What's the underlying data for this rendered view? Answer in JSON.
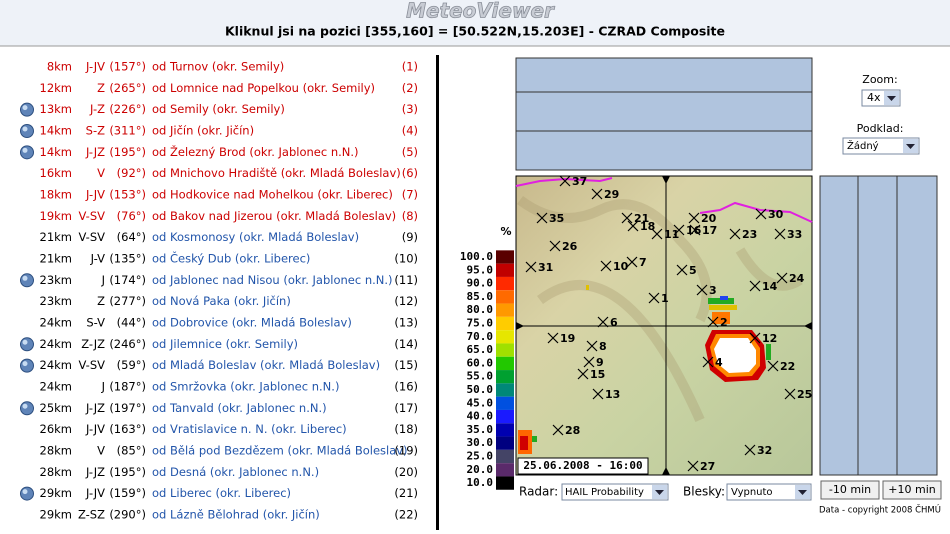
{
  "header": {
    "logo": "MeteoViewer",
    "subtitle": "Kliknul jsi na pozici [355,160] = [50.522N,15.203E] - CZRAD Composite"
  },
  "list": {
    "rows": [
      {
        "distance": "8km",
        "direction": "J-JV",
        "angle": "(157°)",
        "place": "od Turnov (okr. Semily)",
        "number": "(1)",
        "icon": false,
        "color": "#cc0000"
      },
      {
        "distance": "12km",
        "direction": "Z",
        "angle": "(265°)",
        "place": "od Lomnice nad Popelkou (okr. Semily)",
        "number": "(2)",
        "icon": false,
        "color": "#cc0000"
      },
      {
        "distance": "13km",
        "direction": "J-Z",
        "angle": "(226°)",
        "place": "od Semily (okr. Semily)",
        "number": "(3)",
        "icon": true,
        "color": "#cc0000"
      },
      {
        "distance": "14km",
        "direction": "S-Z",
        "angle": "(311°)",
        "place": "od Jičín (okr. Jičín)",
        "number": "(4)",
        "icon": true,
        "color": "#cc0000"
      },
      {
        "distance": "14km",
        "direction": "J-JZ",
        "angle": "(195°)",
        "place": "od Železný Brod (okr. Jablonec n.N.)",
        "number": "(5)",
        "icon": true,
        "color": "#cc0000"
      },
      {
        "distance": "16km",
        "direction": "V",
        "angle": "(92°)",
        "place": "od Mnichovo Hradiště (okr. Mladá Boleslav)",
        "number": "(6)",
        "icon": false,
        "color": "#cc0000"
      },
      {
        "distance": "18km",
        "direction": "J-JV",
        "angle": "(153°)",
        "place": "od Hodkovice nad Mohelkou (okr. Liberec)",
        "number": "(7)",
        "icon": false,
        "color": "#cc0000"
      },
      {
        "distance": "19km",
        "direction": "V-SV",
        "angle": "(76°)",
        "place": "od Bakov nad Jizerou (okr. Mladá Boleslav)",
        "number": "(8)",
        "icon": false,
        "color": "#cc0000"
      },
      {
        "distance": "21km",
        "direction": "V-SV",
        "angle": "(64°)",
        "place": "od Kosmonosy (okr. Mladá Boleslav)",
        "number": "(9)",
        "icon": false,
        "color": "#000000"
      },
      {
        "distance": "21km",
        "direction": "J-V",
        "angle": "(135°)",
        "place": "od Český Dub (okr. Liberec)",
        "number": "(10)",
        "icon": false,
        "color": "#000000"
      },
      {
        "distance": "23km",
        "direction": "J",
        "angle": "(174°)",
        "place": "od Jablonec nad Nisou (okr. Jablonec n.N.)",
        "number": "(11)",
        "icon": true,
        "color": "#000000"
      },
      {
        "distance": "23km",
        "direction": "Z",
        "angle": "(277°)",
        "place": "od Nová Paka (okr. Jičín)",
        "number": "(12)",
        "icon": false,
        "color": "#000000"
      },
      {
        "distance": "24km",
        "direction": "S-V",
        "angle": "(44°)",
        "place": "od Dobrovice (okr. Mladá Boleslav)",
        "number": "(13)",
        "icon": false,
        "color": "#000000"
      },
      {
        "distance": "24km",
        "direction": "Z-JZ",
        "angle": "(246°)",
        "place": "od Jilemnice (okr. Semily)",
        "number": "(14)",
        "icon": true,
        "color": "#000000"
      },
      {
        "distance": "24km",
        "direction": "V-SV",
        "angle": "(59°)",
        "place": "od Mladá Boleslav (okr. Mladá Boleslav)",
        "number": "(15)",
        "icon": true,
        "color": "#000000"
      },
      {
        "distance": "24km",
        "direction": "J",
        "angle": "(187°)",
        "place": "od Smržovka (okr. Jablonec n.N.)",
        "number": "(16)",
        "icon": false,
        "color": "#000000"
      },
      {
        "distance": "25km",
        "direction": "J-JZ",
        "angle": "(197°)",
        "place": "od Tanvald (okr. Jablonec n.N.)",
        "number": "(17)",
        "icon": true,
        "color": "#000000"
      },
      {
        "distance": "26km",
        "direction": "J-JV",
        "angle": "(163°)",
        "place": "od Vratislavice n. N. (okr. Liberec)",
        "number": "(18)",
        "icon": false,
        "color": "#000000"
      },
      {
        "distance": "28km",
        "direction": "V",
        "angle": "(85°)",
        "place": "od Bělá pod Bezdězem (okr. Mladá Boleslav)",
        "number": "(19)",
        "icon": false,
        "color": "#000000"
      },
      {
        "distance": "28km",
        "direction": "J-JZ",
        "angle": "(195°)",
        "place": "od Desná (okr. Jablonec n.N.)",
        "number": "(20)",
        "icon": false,
        "color": "#000000"
      },
      {
        "distance": "29km",
        "direction": "J-JV",
        "angle": "(159°)",
        "place": "od Liberec (okr. Liberec)",
        "number": "(21)",
        "icon": true,
        "color": "#000000"
      },
      {
        "distance": "29km",
        "direction": "Z-SZ",
        "angle": "(290°)",
        "place": "od Lázně Bělohrad (okr. Jičín)",
        "number": "(22)",
        "icon": false,
        "color": "#000000"
      }
    ]
  },
  "legend": {
    "unit": "%",
    "labels": [
      "100.0",
      "95.0",
      "90.0",
      "85.0",
      "80.0",
      "75.0",
      "70.0",
      "65.0",
      "60.0",
      "55.0",
      "50.0",
      "45.0",
      "40.0",
      "35.0",
      "30.0",
      "25.0",
      "20.0",
      "10.0"
    ]
  },
  "map": {
    "timestamp": "25.06.2008 - 16:00",
    "markers": [
      "37",
      "29",
      "35",
      "21",
      "18",
      "11",
      "20",
      "16",
      "17",
      "30",
      "23",
      "33",
      "26",
      "31",
      "10",
      "7",
      "5",
      "3",
      "14",
      "24",
      "1",
      "6",
      "2",
      "12",
      "19",
      "8",
      "9",
      "15",
      "4",
      "22",
      "13",
      "25",
      "28",
      "32",
      "27"
    ]
  },
  "controls": {
    "zoom_label": "Zoom:",
    "zoom_value": "4x",
    "podklad_label": "Podklad:",
    "podklad_value": "Žádný",
    "radar_label": "Radar:",
    "radar_value": "HAIL Probability",
    "blesky_label": "Blesky:",
    "blesky_value": "Vypnuto",
    "back_button": "-10 min",
    "forward_button": "+10 min",
    "copyright": "Data - copyright 2008 ČHMÚ"
  }
}
